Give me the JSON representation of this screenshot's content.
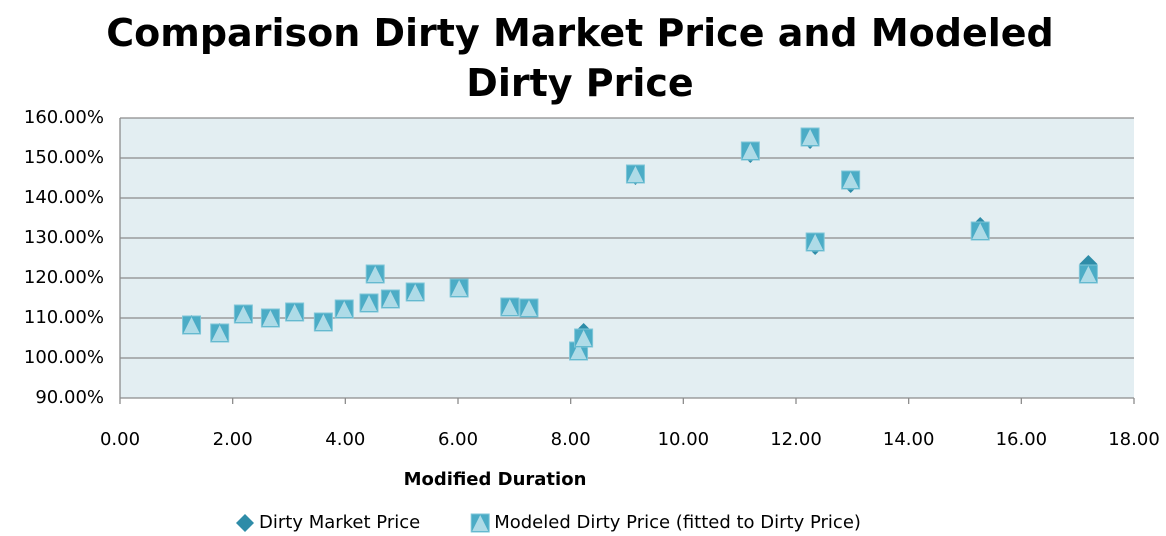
{
  "chart_data": {
    "type": "scatter",
    "title": "Comparison Dirty Market Price and Modeled Dirty Price",
    "x_label": "Modified Duration",
    "x": [
      1.27,
      1.77,
      2.19,
      2.67,
      3.1,
      3.61,
      3.98,
      4.42,
      4.53,
      4.8,
      5.24,
      6.02,
      6.92,
      7.26,
      8.14,
      8.23,
      9.15,
      11.19,
      12.25,
      12.34,
      12.97,
      15.27,
      17.19
    ],
    "series": [
      {
        "name": "Dirty Market Price",
        "color": "#2e8ca8",
        "marker": "diamond",
        "values": [
          108.5,
          106.5,
          111,
          110,
          111.5,
          109,
          112.25,
          113.75,
          121,
          114.75,
          116.5,
          117.5,
          112.75,
          112.5,
          102,
          106.5,
          145.5,
          151,
          154.5,
          128,
          143.5,
          133,
          123.5
        ]
      },
      {
        "name": "Modeled Dirty Price (fitted to Dirty Price)",
        "color": "#4bacc6",
        "marker": "square",
        "values": [
          108.25,
          106.25,
          111,
          110,
          111.5,
          109,
          112.25,
          113.75,
          121,
          114.75,
          116.5,
          117.5,
          112.75,
          112.5,
          101.75,
          105,
          146,
          151.75,
          155.25,
          129,
          144.5,
          131.75,
          121
        ]
      }
    ],
    "xlim": [
      0,
      18
    ],
    "xticks": [
      {
        "value": 0,
        "label": "0.00"
      },
      {
        "value": 2,
        "label": "2.00"
      },
      {
        "value": 4,
        "label": "4.00"
      },
      {
        "value": 6,
        "label": "6.00"
      },
      {
        "value": 8,
        "label": "8.00"
      },
      {
        "value": 10,
        "label": "10.00"
      },
      {
        "value": 12,
        "label": "12.00"
      },
      {
        "value": 14,
        "label": "14.00"
      },
      {
        "value": 16,
        "label": "16.00"
      },
      {
        "value": 18,
        "label": "18.00"
      }
    ],
    "ylim": [
      90,
      160
    ],
    "yticks": [
      {
        "value": 90,
        "label": "90.00%"
      },
      {
        "value": 100,
        "label": "100.00%"
      },
      {
        "value": 110,
        "label": "110.00%"
      },
      {
        "value": 120,
        "label": "120.00%"
      },
      {
        "value": 130,
        "label": "130.00%"
      },
      {
        "value": 140,
        "label": "140.00%"
      },
      {
        "value": 150,
        "label": "150.00%"
      },
      {
        "value": 160,
        "label": "160.00%"
      }
    ],
    "grid": true,
    "legend": "bottom"
  }
}
